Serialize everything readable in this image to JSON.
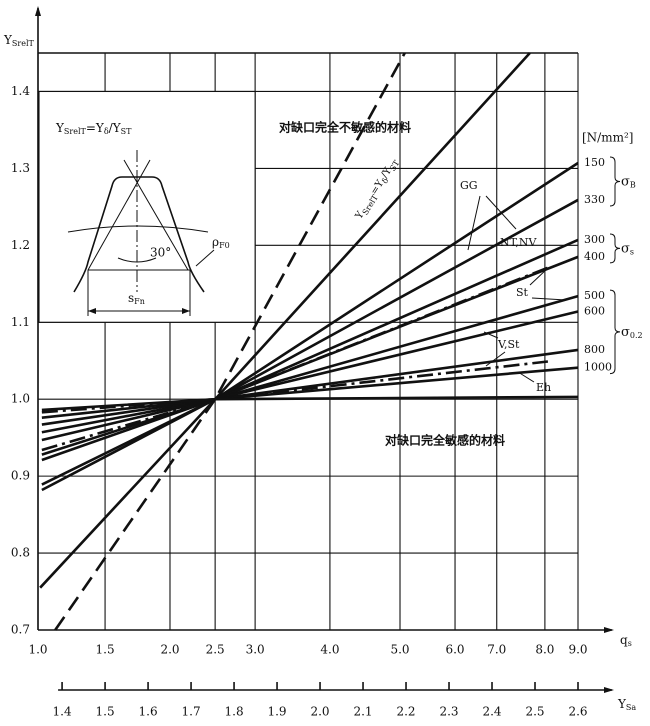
{
  "chart_data": {
    "type": "line",
    "y_label": [
      {
        "t": "Y",
        "s": "SrelT"
      }
    ],
    "x_label": [
      {
        "t": "q",
        "s": "s"
      }
    ],
    "x2_label": [
      {
        "t": "Y",
        "s": "Sa"
      }
    ],
    "xlim": [
      1.344,
      2.6
    ],
    "ylim": [
      0.7,
      1.45
    ],
    "grid": true,
    "yticks": [
      0.7,
      0.8,
      0.9,
      {
        "value": 1,
        "label": "1.0"
      },
      1.1,
      1.2,
      1.3,
      1.4
    ],
    "xticks": [
      1.4,
      1.5,
      1.6,
      1.7,
      1.8,
      1.9,
      {
        "value": 2,
        "label": "2.0"
      },
      2.1,
      2.2,
      2.3,
      2.4,
      2.5,
      2.6
    ],
    "qs_ticks": [
      {
        "value": 1.344,
        "label": "1.0"
      },
      {
        "value": 1.5,
        "label": "1.5"
      },
      {
        "value": 1.651,
        "label": "2.0"
      },
      {
        "value": 1.756,
        "label": "2.5"
      },
      {
        "value": 1.849,
        "label": "3.0"
      },
      {
        "value": 2.023,
        "label": "4.0"
      },
      {
        "value": 2.186,
        "label": "5.0"
      },
      {
        "value": 2.314,
        "label": "6.0"
      },
      {
        "value": 2.411,
        "label": "7.0"
      },
      {
        "value": 2.523,
        "label": "8.0"
      },
      {
        "value": 2.6,
        "label": "9.0"
      }
    ],
    "series": [
      {
        "color": "#111111",
        "dash": "dashed",
        "x": [
          1.384,
          1.756,
          2.197
        ],
        "values": [
          0.7,
          1.0,
          1.45
        ]
      },
      {
        "color": "#111111",
        "dash": "solid",
        "x": [
          1.349,
          1.756,
          2.488
        ],
        "values": [
          0.755,
          1.0,
          1.45
        ]
      },
      {
        "name": "150",
        "color": "#111111",
        "dash": "solid",
        "x": [
          1.353,
          1.756,
          2.6
        ],
        "values": [
          0.882,
          1.0,
          1.307
        ]
      },
      {
        "name": "330",
        "color": "#111111",
        "dash": "solid",
        "x": [
          1.353,
          1.756,
          2.6
        ],
        "values": [
          0.889,
          1.0,
          1.259
        ]
      },
      {
        "name": "300",
        "color": "#111111",
        "dash": "solid",
        "x": [
          1.353,
          1.756,
          2.6
        ],
        "values": [
          0.921,
          1.0,
          1.207
        ]
      },
      {
        "name": "400",
        "color": "#111111",
        "dash": "solid",
        "x": [
          1.353,
          1.756,
          2.6
        ],
        "values": [
          0.928,
          1.0,
          1.185
        ]
      },
      {
        "color": "#111111",
        "dash": "dashdot",
        "x": [
          1.353,
          1.756,
          2.53
        ],
        "values": [
          0.934,
          1.0,
          1.171
        ]
      },
      {
        "name": "500",
        "color": "#111111",
        "dash": "solid",
        "x": [
          1.353,
          1.756,
          2.6
        ],
        "values": [
          0.947,
          1.0,
          1.134
        ]
      },
      {
        "name": "600",
        "color": "#111111",
        "dash": "solid",
        "x": [
          1.353,
          1.756,
          2.6
        ],
        "values": [
          0.957,
          1.0,
          1.114
        ]
      },
      {
        "color": "#111111",
        "dash": "dashdot",
        "x": [
          1.353,
          1.756,
          2.53
        ],
        "values": [
          0.983,
          1.0,
          1.049
        ]
      },
      {
        "name": "800",
        "color": "#111111",
        "dash": "solid",
        "x": [
          1.353,
          1.756,
          2.6
        ],
        "values": [
          0.967,
          1.0,
          1.064
        ]
      },
      {
        "name": "1000",
        "color": "#111111",
        "dash": "solid",
        "x": [
          1.353,
          1.756,
          2.6
        ],
        "values": [
          0.976,
          1.0,
          1.041
        ]
      },
      {
        "color": "#111111",
        "dash": "solid",
        "x": [
          1.353,
          1.756,
          2.6
        ],
        "values": [
          0.986,
          1.0,
          1.003
        ]
      }
    ],
    "unit": "[N/mm²]",
    "unit_groups": [
      [
        {
          "t": "σ",
          "s": "B"
        }
      ],
      [
        {
          "t": "σ",
          "s": "s"
        }
      ],
      [
        {
          "t": "σ",
          "s": "0.2"
        }
      ]
    ],
    "annotations": {
      "insensitive": "对缺口完全不敏感的材料",
      "sensitive": "对缺口完全敏感的材料"
    },
    "curve_labels": [
      "GG",
      "NT,NV",
      "St",
      "V,St",
      "Eh"
    ],
    "line_label": [
      {
        "t": "Y",
        "s": "SrelT"
      },
      {
        "t": "=Y",
        "s": "δ"
      },
      {
        "t": "/Y",
        "s": "ST"
      }
    ],
    "inset": {
      "formula": [
        {
          "t": "Y",
          "s": "SrelT"
        },
        {
          "t": "=Y",
          "s": "δ"
        },
        {
          "t": "/Y",
          "s": "ST"
        }
      ],
      "angle": "30°",
      "radius": [
        {
          "t": "ρ",
          "s": "F0"
        }
      ],
      "width": [
        {
          "t": "s",
          "s": "Fn"
        }
      ]
    }
  }
}
